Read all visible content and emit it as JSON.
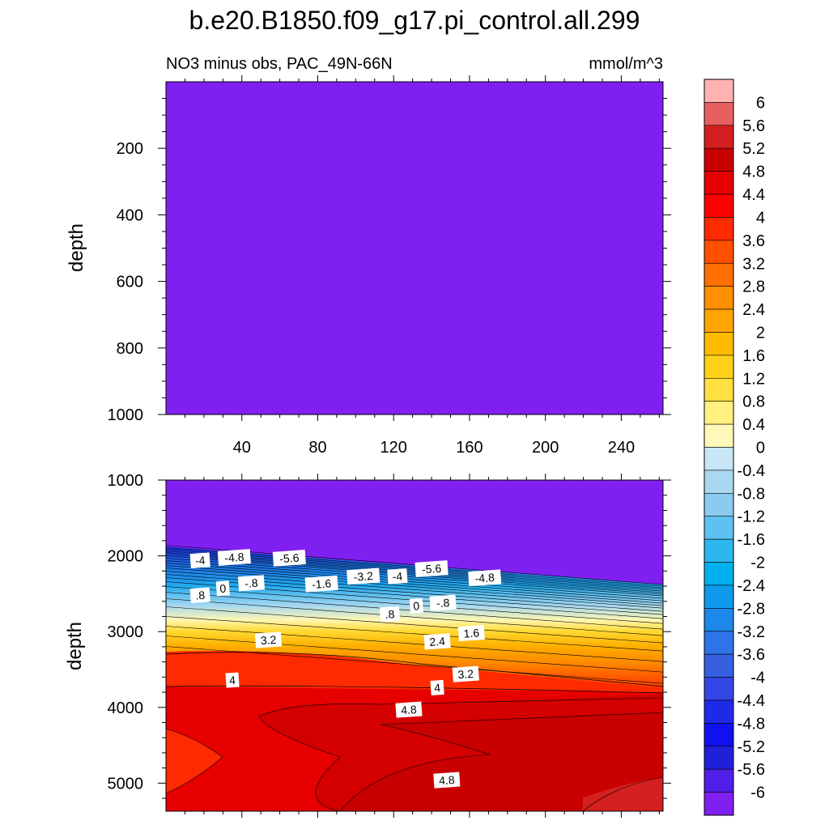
{
  "figure": {
    "title": "b.e20.B1850.f09_g17.pi_control.all.299",
    "left_subtitle": "NO3 minus obs, PAC_49N-66N",
    "right_subtitle": "mmol/m^3"
  },
  "chart_data": [
    {
      "type": "heatmap",
      "panel": "upper",
      "field": "NO3 minus obs",
      "ylabel": "depth",
      "xlim": [
        0,
        262
      ],
      "ylim": [
        1000,
        0
      ],
      "x_ticks": [
        40,
        80,
        120,
        160,
        200,
        240
      ],
      "x_tick_labels": [
        "40",
        "80",
        "120",
        "160",
        "200",
        "240"
      ],
      "y_ticks": [
        200,
        400,
        600,
        800,
        1000
      ],
      "y_tick_labels": [
        "200",
        "400",
        "600",
        "800",
        "1000"
      ],
      "fill_level": -6,
      "note_values": "entire panel below lowest contour level"
    },
    {
      "type": "heatmap",
      "panel": "lower",
      "field": "NO3 minus obs",
      "ylabel": "depth",
      "xlim": [
        0,
        262
      ],
      "ylim": [
        5370,
        1000
      ],
      "x_ticks": [
        40,
        80,
        120,
        160,
        200,
        240
      ],
      "y_ticks": [
        1000,
        2000,
        3000,
        4000,
        5000
      ],
      "y_tick_labels": [
        "1000",
        "2000",
        "3000",
        "4000",
        "5000"
      ],
      "transition_surface_depth": [
        {
          "x": 0,
          "depth": 1860
        },
        {
          "x": 262,
          "depth": 2380
        }
      ],
      "contour_labels": [
        {
          "text": "-4",
          "x": 18,
          "depth": 2060
        },
        {
          "text": "-4.8",
          "x": 36,
          "depth": 2020
        },
        {
          "text": "-5.6",
          "x": 65,
          "depth": 2030
        },
        {
          "text": "-5.6",
          "x": 140,
          "depth": 2170
        },
        {
          "text": "-4",
          "x": 122,
          "depth": 2270
        },
        {
          "text": "-4.8",
          "x": 168,
          "depth": 2290
        },
        {
          "text": "-3.2",
          "x": 104,
          "depth": 2270
        },
        {
          "text": "-1.6",
          "x": 82,
          "depth": 2370
        },
        {
          "text": "-.8",
          "x": 45,
          "depth": 2360
        },
        {
          "text": "0",
          "x": 30,
          "depth": 2430
        },
        {
          "text": "-.8",
          "x": 146,
          "depth": 2620
        },
        {
          "text": "0",
          "x": 132,
          "depth": 2660
        },
        {
          "text": ".8",
          "x": 18,
          "depth": 2520
        },
        {
          "text": ".8",
          "x": 118,
          "depth": 2770
        },
        {
          "text": "1.6",
          "x": 161,
          "depth": 3020
        },
        {
          "text": "2.4",
          "x": 143,
          "depth": 3130
        },
        {
          "text": "3.2",
          "x": 54,
          "depth": 3110
        },
        {
          "text": "3.2",
          "x": 158,
          "depth": 3560
        },
        {
          "text": "4",
          "x": 35,
          "depth": 3640
        },
        {
          "text": "4",
          "x": 143,
          "depth": 3740
        },
        {
          "text": "4.8",
          "x": 128,
          "depth": 4030
        },
        {
          "text": "4.8",
          "x": 148,
          "depth": 4960
        }
      ]
    }
  ],
  "colorbar": {
    "labels": [
      "6",
      "5.6",
      "5.2",
      "4.8",
      "4.4",
      "4",
      "3.6",
      "3.2",
      "2.8",
      "2.4",
      "2",
      "1.6",
      "1.2",
      "0.8",
      "0.4",
      "0",
      "-0.4",
      "-0.8",
      "-1.2",
      "-1.6",
      "-2",
      "-2.4",
      "-2.8",
      "-3.2",
      "-3.6",
      "-4",
      "-4.4",
      "-4.8",
      "-5.2",
      "-5.6",
      "-6"
    ],
    "colors": [
      "#ffb3b3",
      "#e66060",
      "#d42020",
      "#c80000",
      "#e60000",
      "#ff0000",
      "#ff2a00",
      "#ff5000",
      "#ff7000",
      "#ff8e00",
      "#ffa500",
      "#ffbb00",
      "#ffd21a",
      "#ffe040",
      "#fff080",
      "#fff8b8",
      "#c8e6f5",
      "#aad8f0",
      "#8ccbef",
      "#5ec2f0",
      "#2eb6ee",
      "#00b0ee",
      "#0f9aec",
      "#1c88ea",
      "#2d74e8",
      "#3660e0",
      "#3446e6",
      "#1f2ae8",
      "#1010f0",
      "#2020d8",
      "#5020e8",
      "#8020f0"
    ]
  }
}
